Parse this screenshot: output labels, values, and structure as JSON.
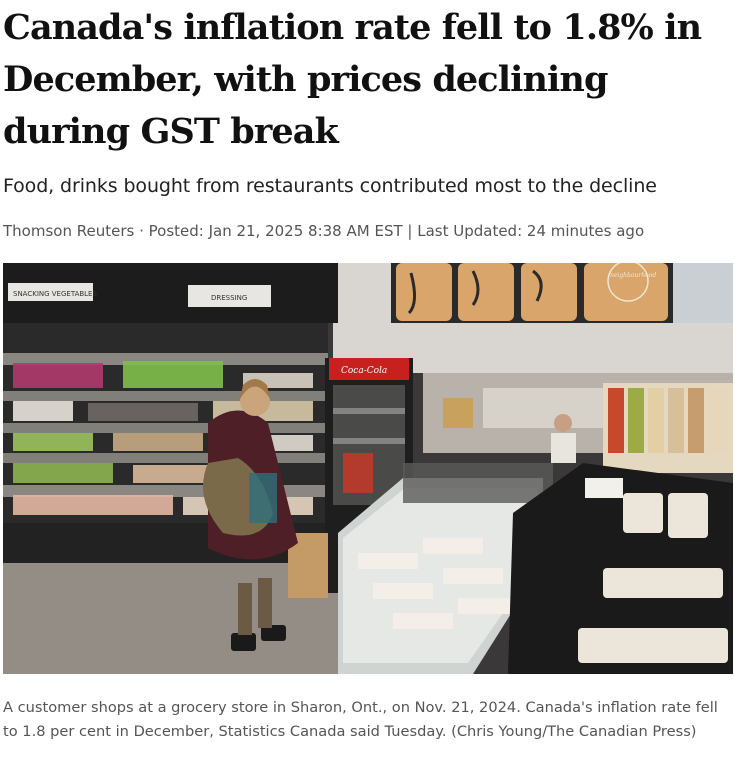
{
  "article": {
    "headline": "Canada's inflation rate fell to 1.8% in December, with prices declining during GST break",
    "dek": "Food, drinks bought from restaurants contributed most to the decline",
    "byline": {
      "author": "Thomson Reuters",
      "separator1": " · ",
      "posted": "Posted: Jan 21, 2025 8:38 AM EST",
      "separator2": " | ",
      "updated": "Last Updated: 24 minutes ago"
    },
    "photo": {
      "signs": {
        "snacking_vegetables": "SNACKING VEGETABLES",
        "dressing": "DRESSING",
        "neighbourhood": "neighbourhood",
        "coca_cola": "Coca-Cola"
      }
    },
    "caption": "A customer shops at a grocery store in Sharon, Ont., on Nov. 21, 2024. Canada's inflation rate fell to 1.8 per cent in December, Statistics Canada said Tuesday. (Chris Young/The Canadian Press)"
  }
}
